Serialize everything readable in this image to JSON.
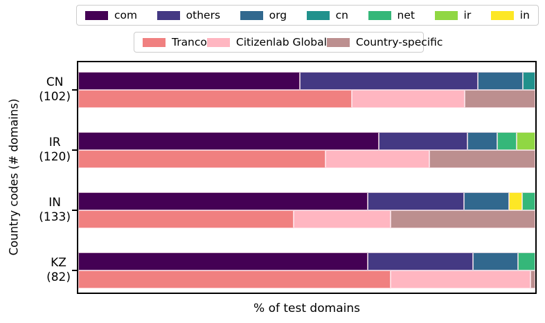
{
  "chart_data": {
    "type": "bar",
    "orientation": "horizontal",
    "stacked": true,
    "xlabel": "% of test domains",
    "ylabel": "Country codes (# domains)",
    "xlim": [
      0,
      100
    ],
    "grid": false,
    "legend_positions": [
      "top-outside",
      "top-outside-second-row"
    ],
    "palette": {
      "com": "#440154",
      "others": "#443983",
      "org": "#31688e",
      "cn": "#21918c",
      "net": "#35b779",
      "ir": "#90d743",
      "in": "#fde725",
      "Tranco": "#f08080",
      "Citizenlab Global": "#ffb6c1",
      "Country-specific": "#bc8f8f"
    },
    "legends": [
      {
        "items": [
          "com",
          "others",
          "org",
          "cn",
          "net",
          "ir",
          "in"
        ]
      },
      {
        "items": [
          "Tranco",
          "Citizenlab Global",
          "Country-specific"
        ]
      }
    ],
    "groups": [
      {
        "code": "CN",
        "count_label": "(102)",
        "tld_bar": [
          {
            "name": "com",
            "value": 48.5
          },
          {
            "name": "others",
            "value": 39.0
          },
          {
            "name": "org",
            "value": 9.8
          },
          {
            "name": "cn",
            "value": 2.7
          }
        ],
        "list_bar": [
          {
            "name": "Tranco",
            "value": 59.8
          },
          {
            "name": "Citizenlab Global",
            "value": 24.7
          },
          {
            "name": "Country-specific",
            "value": 15.5
          }
        ]
      },
      {
        "code": "IR",
        "count_label": "(120)",
        "tld_bar": [
          {
            "name": "com",
            "value": 65.8
          },
          {
            "name": "others",
            "value": 19.4
          },
          {
            "name": "org",
            "value": 6.5
          },
          {
            "name": "net",
            "value": 4.2
          },
          {
            "name": "ir",
            "value": 4.1
          }
        ],
        "list_bar": [
          {
            "name": "Tranco",
            "value": 54.1
          },
          {
            "name": "Citizenlab Global",
            "value": 22.7
          },
          {
            "name": "Country-specific",
            "value": 23.2
          }
        ]
      },
      {
        "code": "IN",
        "count_label": "(133)",
        "tld_bar": [
          {
            "name": "com",
            "value": 63.3
          },
          {
            "name": "others",
            "value": 21.1
          },
          {
            "name": "org",
            "value": 9.8
          },
          {
            "name": "in",
            "value": 2.9
          },
          {
            "name": "net",
            "value": 2.9
          }
        ],
        "list_bar": [
          {
            "name": "Tranco",
            "value": 47.1
          },
          {
            "name": "Citizenlab Global",
            "value": 21.2
          },
          {
            "name": "Country-specific",
            "value": 31.7
          }
        ]
      },
      {
        "code": "KZ",
        "count_label": "(82)",
        "tld_bar": [
          {
            "name": "com",
            "value": 63.4
          },
          {
            "name": "others",
            "value": 23.0
          },
          {
            "name": "org",
            "value": 9.8
          },
          {
            "name": "net",
            "value": 3.8
          }
        ],
        "list_bar": [
          {
            "name": "Tranco",
            "value": 68.3
          },
          {
            "name": "Citizenlab Global",
            "value": 30.7
          },
          {
            "name": "Country-specific",
            "value": 1.0
          }
        ]
      }
    ]
  }
}
